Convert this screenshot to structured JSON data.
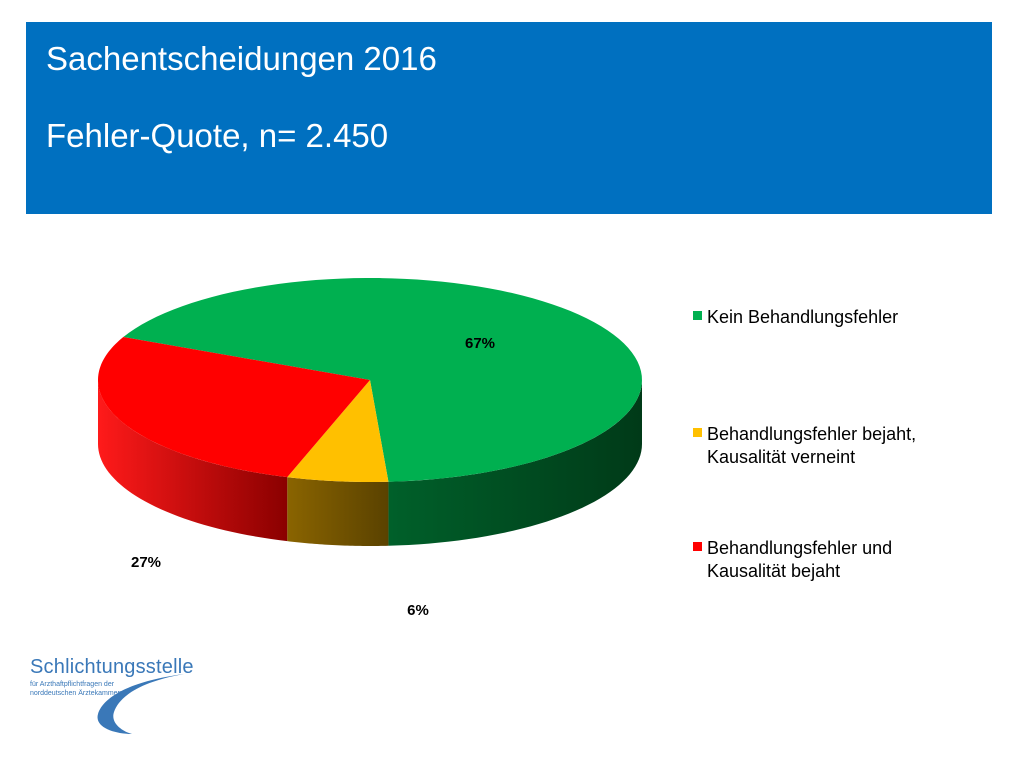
{
  "header": {
    "title": "Sachentscheidungen 2016",
    "subtitle": "Fehler-Quote, n= 2.450",
    "background": "#0070c0"
  },
  "chart_data": {
    "type": "pie",
    "style": "3d",
    "title": "",
    "legend_position": "right",
    "slices": [
      {
        "label": "Kein Behandlungsfehler",
        "value": 67,
        "data_label": "67%",
        "color": "#00b050"
      },
      {
        "label": "Behandlungsfehler bejaht, Kausalität verneint",
        "value": 6,
        "data_label": "6%",
        "color": "#ffc000"
      },
      {
        "label": "Behandlungsfehler und Kausalität bejaht",
        "value": 27,
        "data_label": "27%",
        "color": "#ff0000"
      }
    ]
  },
  "legend": [
    {
      "lines": [
        "Kein Behandlungsfehler"
      ]
    },
    {
      "lines": [
        "Behandlungsfehler bejaht,",
        "Kausalität verneint"
      ]
    },
    {
      "lines": [
        "Behandlungsfehler und",
        "Kausalität bejaht"
      ]
    }
  ],
  "logo": {
    "name": "Schlichtungsstelle",
    "line1": "für Arzthaftpflichtfragen der",
    "line2": "norddeutschen Ärztekammern",
    "color": "#3a78b8"
  }
}
